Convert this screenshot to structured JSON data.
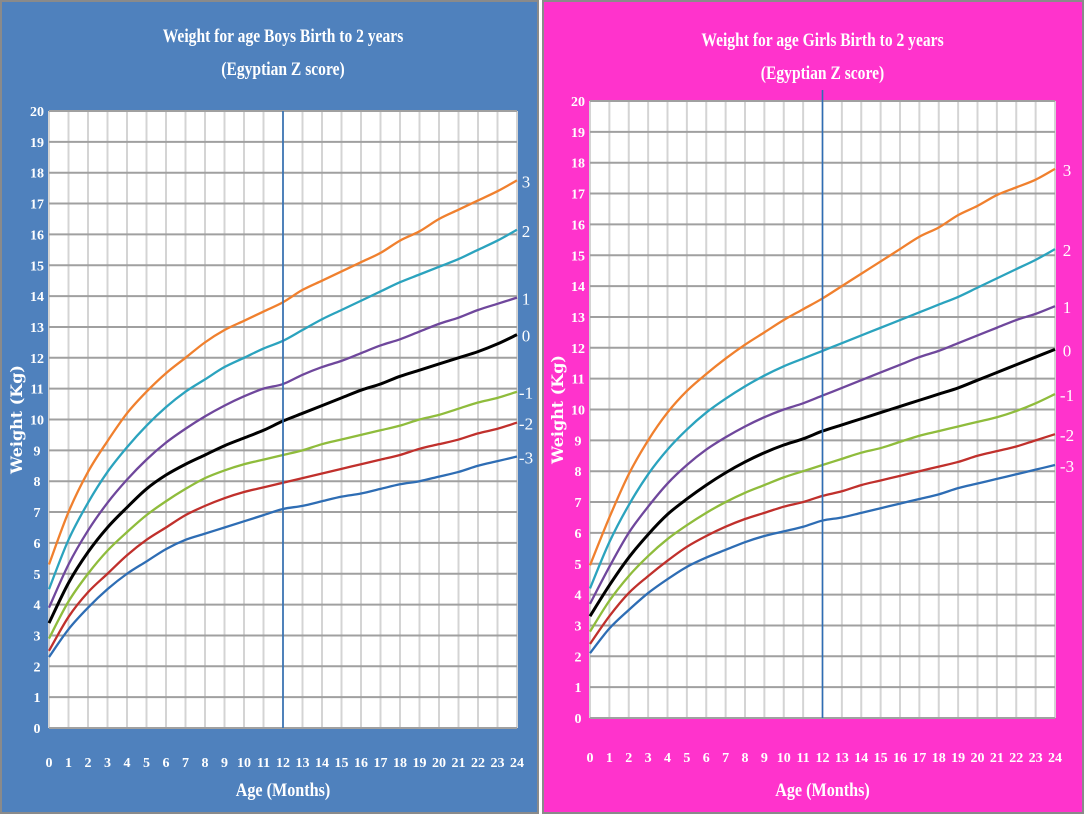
{
  "chart_data": [
    {
      "type": "line",
      "title": "Weight for age Boys Birth to 2 years",
      "subtitle": "(Egyptian Z score)",
      "xlabel": "Age (Months)",
      "ylabel": "Weight (Kg)",
      "xlim": [
        0,
        24
      ],
      "ylim": [
        0,
        20
      ],
      "grid": true,
      "background_color": "#4f81bd",
      "reference_line_x": 12,
      "x": [
        0,
        1,
        2,
        3,
        4,
        5,
        6,
        7,
        8,
        9,
        10,
        11,
        12,
        13,
        14,
        15,
        16,
        17,
        18,
        19,
        20,
        21,
        22,
        23,
        24
      ],
      "x_tick_labels": [
        "0",
        "1",
        "2",
        "3",
        "4",
        "5",
        "6",
        "7",
        "8",
        "9",
        "10",
        "11",
        "12",
        "13",
        "14",
        "15",
        "16",
        "17",
        "18",
        "19",
        "20",
        "21",
        "22",
        "23",
        "24"
      ],
      "y_tick_labels": [
        "0",
        "1",
        "2",
        "3",
        "4",
        "5",
        "6",
        "7",
        "8",
        "9",
        "10",
        "11",
        "12",
        "13",
        "14",
        "15",
        "16",
        "17",
        "18",
        "19",
        "20"
      ],
      "series": [
        {
          "name": "3",
          "color": "#f0802e",
          "values": [
            5.3,
            7.0,
            8.3,
            9.3,
            10.2,
            10.9,
            11.5,
            12.0,
            12.5,
            12.9,
            13.2,
            13.5,
            13.8,
            14.2,
            14.5,
            14.8,
            15.1,
            15.4,
            15.8,
            16.1,
            16.5,
            16.8,
            17.1,
            17.4,
            17.75
          ]
        },
        {
          "name": "2",
          "color": "#2ba3be",
          "values": [
            4.5,
            6.1,
            7.3,
            8.3,
            9.1,
            9.8,
            10.4,
            10.9,
            11.3,
            11.7,
            12.0,
            12.3,
            12.55,
            12.9,
            13.25,
            13.55,
            13.85,
            14.15,
            14.45,
            14.7,
            14.95,
            15.2,
            15.5,
            15.8,
            16.15
          ]
        },
        {
          "name": "1",
          "color": "#6f479c",
          "values": [
            3.9,
            5.3,
            6.4,
            7.3,
            8.05,
            8.7,
            9.25,
            9.7,
            10.1,
            10.45,
            10.75,
            11.0,
            11.15,
            11.45,
            11.7,
            11.9,
            12.15,
            12.4,
            12.6,
            12.85,
            13.1,
            13.3,
            13.55,
            13.75,
            13.95
          ]
        },
        {
          "name": "0",
          "color": "#000000",
          "values": [
            3.4,
            4.7,
            5.7,
            6.5,
            7.15,
            7.75,
            8.2,
            8.55,
            8.85,
            9.15,
            9.4,
            9.65,
            9.95,
            10.2,
            10.45,
            10.7,
            10.95,
            11.15,
            11.4,
            11.6,
            11.8,
            12.0,
            12.2,
            12.45,
            12.75
          ]
        },
        {
          "name": "-1",
          "color": "#8fbc3c",
          "values": [
            2.9,
            4.1,
            5.0,
            5.75,
            6.35,
            6.9,
            7.35,
            7.75,
            8.1,
            8.35,
            8.55,
            8.7,
            8.85,
            9.0,
            9.2,
            9.35,
            9.5,
            9.65,
            9.8,
            10.0,
            10.15,
            10.35,
            10.55,
            10.7,
            10.9
          ]
        },
        {
          "name": "-2",
          "color": "#c0302c",
          "values": [
            2.5,
            3.6,
            4.4,
            5.0,
            5.6,
            6.1,
            6.5,
            6.9,
            7.2,
            7.45,
            7.65,
            7.8,
            7.95,
            8.1,
            8.25,
            8.4,
            8.55,
            8.7,
            8.85,
            9.05,
            9.2,
            9.35,
            9.55,
            9.7,
            9.9
          ]
        },
        {
          "name": "-3",
          "color": "#2e6db4",
          "values": [
            2.3,
            3.2,
            3.9,
            4.5,
            5.0,
            5.4,
            5.8,
            6.1,
            6.3,
            6.5,
            6.7,
            6.9,
            7.1,
            7.2,
            7.35,
            7.5,
            7.6,
            7.75,
            7.9,
            8.0,
            8.15,
            8.3,
            8.5,
            8.65,
            8.8
          ]
        }
      ]
    },
    {
      "type": "line",
      "title": "Weight for age Girls Birth to 2 years",
      "subtitle": "(Egyptian Z score)",
      "xlabel": "Age (Months)",
      "ylabel": "Weight (Kg)",
      "xlim": [
        0,
        24
      ],
      "ylim": [
        0,
        20
      ],
      "grid": true,
      "background_color": "#ff33cc",
      "reference_line_x": 12,
      "x": [
        0,
        1,
        2,
        3,
        4,
        5,
        6,
        7,
        8,
        9,
        10,
        11,
        12,
        13,
        14,
        15,
        16,
        17,
        18,
        19,
        20,
        21,
        22,
        23,
        24
      ],
      "x_tick_labels": [
        "0",
        "1",
        "2",
        "3",
        "4",
        "5",
        "6",
        "7",
        "8",
        "9",
        "10",
        "11",
        "12",
        "13",
        "14",
        "15",
        "16",
        "17",
        "18",
        "19",
        "20",
        "21",
        "22",
        "23",
        "24"
      ],
      "y_tick_labels": [
        "0",
        "1",
        "2",
        "3",
        "4",
        "5",
        "6",
        "7",
        "8",
        "9",
        "10",
        "11",
        "12",
        "13",
        "14",
        "15",
        "16",
        "17",
        "18",
        "19",
        "20"
      ],
      "series": [
        {
          "name": "3",
          "color": "#f0802e",
          "values": [
            4.95,
            6.5,
            7.9,
            9.0,
            9.9,
            10.6,
            11.15,
            11.65,
            12.1,
            12.5,
            12.9,
            13.25,
            13.6,
            14.0,
            14.4,
            14.8,
            15.2,
            15.6,
            15.9,
            16.3,
            16.6,
            16.95,
            17.2,
            17.45,
            17.8
          ]
        },
        {
          "name": "2",
          "color": "#2ba3be",
          "values": [
            4.2,
            5.7,
            6.9,
            7.9,
            8.7,
            9.35,
            9.9,
            10.35,
            10.75,
            11.1,
            11.4,
            11.65,
            11.9,
            12.15,
            12.4,
            12.65,
            12.9,
            13.15,
            13.4,
            13.65,
            13.95,
            14.25,
            14.55,
            14.85,
            15.2
          ]
        },
        {
          "name": "1",
          "color": "#6f479c",
          "values": [
            3.7,
            4.9,
            6.0,
            6.85,
            7.6,
            8.2,
            8.7,
            9.1,
            9.45,
            9.75,
            10.0,
            10.2,
            10.45,
            10.7,
            10.95,
            11.2,
            11.45,
            11.7,
            11.9,
            12.15,
            12.4,
            12.65,
            12.9,
            13.1,
            13.35
          ]
        },
        {
          "name": "0",
          "color": "#000000",
          "values": [
            3.3,
            4.3,
            5.2,
            5.95,
            6.6,
            7.1,
            7.55,
            7.95,
            8.3,
            8.6,
            8.85,
            9.05,
            9.3,
            9.5,
            9.7,
            9.9,
            10.1,
            10.3,
            10.5,
            10.7,
            10.95,
            11.2,
            11.45,
            11.7,
            11.95
          ]
        },
        {
          "name": "-1",
          "color": "#8fbc3c",
          "values": [
            2.8,
            3.8,
            4.6,
            5.25,
            5.8,
            6.25,
            6.65,
            7.0,
            7.3,
            7.55,
            7.8,
            8.0,
            8.2,
            8.4,
            8.6,
            8.75,
            8.95,
            9.15,
            9.3,
            9.45,
            9.6,
            9.75,
            9.95,
            10.2,
            10.5
          ]
        },
        {
          "name": "-2",
          "color": "#c0302c",
          "values": [
            2.4,
            3.3,
            4.05,
            4.6,
            5.1,
            5.55,
            5.9,
            6.2,
            6.45,
            6.65,
            6.85,
            7.0,
            7.2,
            7.35,
            7.55,
            7.7,
            7.85,
            8.0,
            8.15,
            8.3,
            8.5,
            8.65,
            8.8,
            9.0,
            9.2
          ]
        },
        {
          "name": "-3",
          "color": "#2e6db4",
          "values": [
            2.1,
            2.9,
            3.5,
            4.05,
            4.5,
            4.9,
            5.2,
            5.45,
            5.7,
            5.9,
            6.05,
            6.2,
            6.4,
            6.5,
            6.65,
            6.8,
            6.95,
            7.1,
            7.25,
            7.45,
            7.6,
            7.75,
            7.9,
            8.05,
            8.2
          ]
        }
      ]
    }
  ]
}
